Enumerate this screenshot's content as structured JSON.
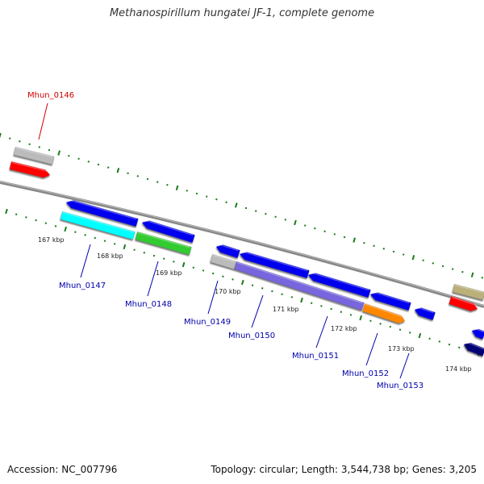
{
  "title": "Methanospirillum hungatei JF-1, complete genome",
  "footer": {
    "accession": "Accession: NC_007796",
    "summary": "Topology: circular; Length: 3,544,738 bp; Genes: 3,205"
  },
  "colors": {
    "backbone": "#888888",
    "tick": "#1a7a1a",
    "label_forward": "#cc0000",
    "label_reverse": "#0000aa"
  },
  "ruler": [
    "167 kbp",
    "168 kbp",
    "169 kbp",
    "170 kbp",
    "171 kbp",
    "172 kbp",
    "173 kbp",
    "174 kbp"
  ],
  "genes": [
    {
      "label": "Mhun_0146",
      "color": "#ff0000",
      "strand": "forward"
    },
    {
      "label": "Mhun_0147",
      "color": "#00ffff",
      "strand": "reverse"
    },
    {
      "label": "Mhun_0148",
      "color": "#33cc33",
      "strand": "reverse"
    },
    {
      "label": "Mhun_0149",
      "color": "#0000ee",
      "strand": "reverse"
    },
    {
      "label": "Mhun_0150",
      "color": "#0000ee",
      "strand": "reverse"
    },
    {
      "label": "Mhun_0151",
      "color": "#7766dd",
      "strand": "reverse"
    },
    {
      "label": "Mhun_0152",
      "color": "#ff8800",
      "strand": "reverse"
    },
    {
      "label": "Mhun_0153",
      "color": "#0000ee",
      "strand": "reverse"
    }
  ]
}
